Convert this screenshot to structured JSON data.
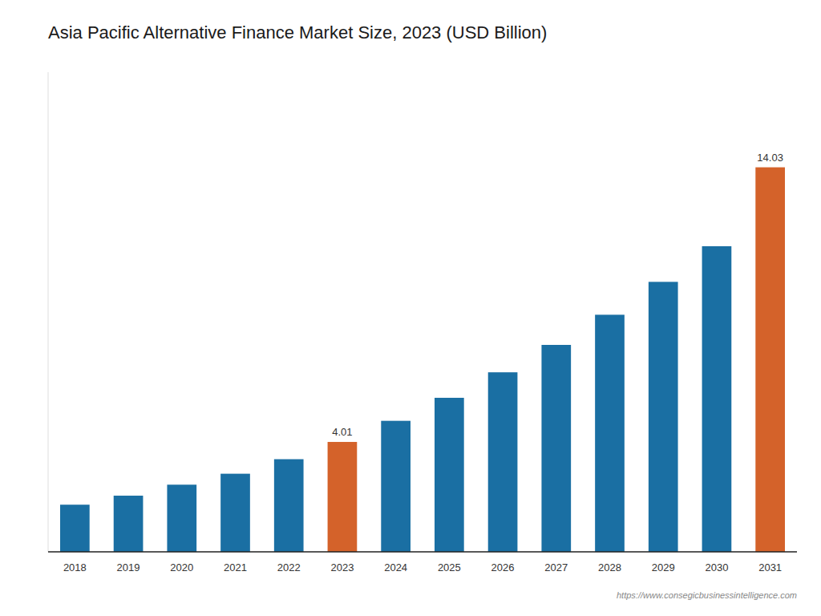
{
  "chart_data": {
    "type": "bar",
    "title": "Asia Pacific Alternative Finance Market Size, 2023 (USD Billion)",
    "categories": [
      "2018",
      "2019",
      "2020",
      "2021",
      "2022",
      "2023",
      "2024",
      "2025",
      "2026",
      "2027",
      "2028",
      "2029",
      "2030",
      "2031"
    ],
    "values": [
      1.72,
      2.05,
      2.45,
      2.85,
      3.38,
      4.01,
      4.78,
      5.62,
      6.55,
      7.55,
      8.65,
      9.85,
      11.15,
      14.03
    ],
    "value_labels": [
      null,
      null,
      null,
      null,
      null,
      "4.01",
      null,
      null,
      null,
      null,
      null,
      null,
      null,
      "14.03"
    ],
    "colors": [
      "#1a6fa3",
      "#1a6fa3",
      "#1a6fa3",
      "#1a6fa3",
      "#1a6fa3",
      "#d4622a",
      "#1a6fa3",
      "#1a6fa3",
      "#1a6fa3",
      "#1a6fa3",
      "#1a6fa3",
      "#1a6fa3",
      "#1a6fa3",
      "#d4622a"
    ],
    "ylim": [
      0,
      17.5
    ],
    "grid": false,
    "data_labels": true,
    "tick_labels": "x",
    "annotations": [
      "https://www.consegicbusinessintelligence.com"
    ]
  }
}
